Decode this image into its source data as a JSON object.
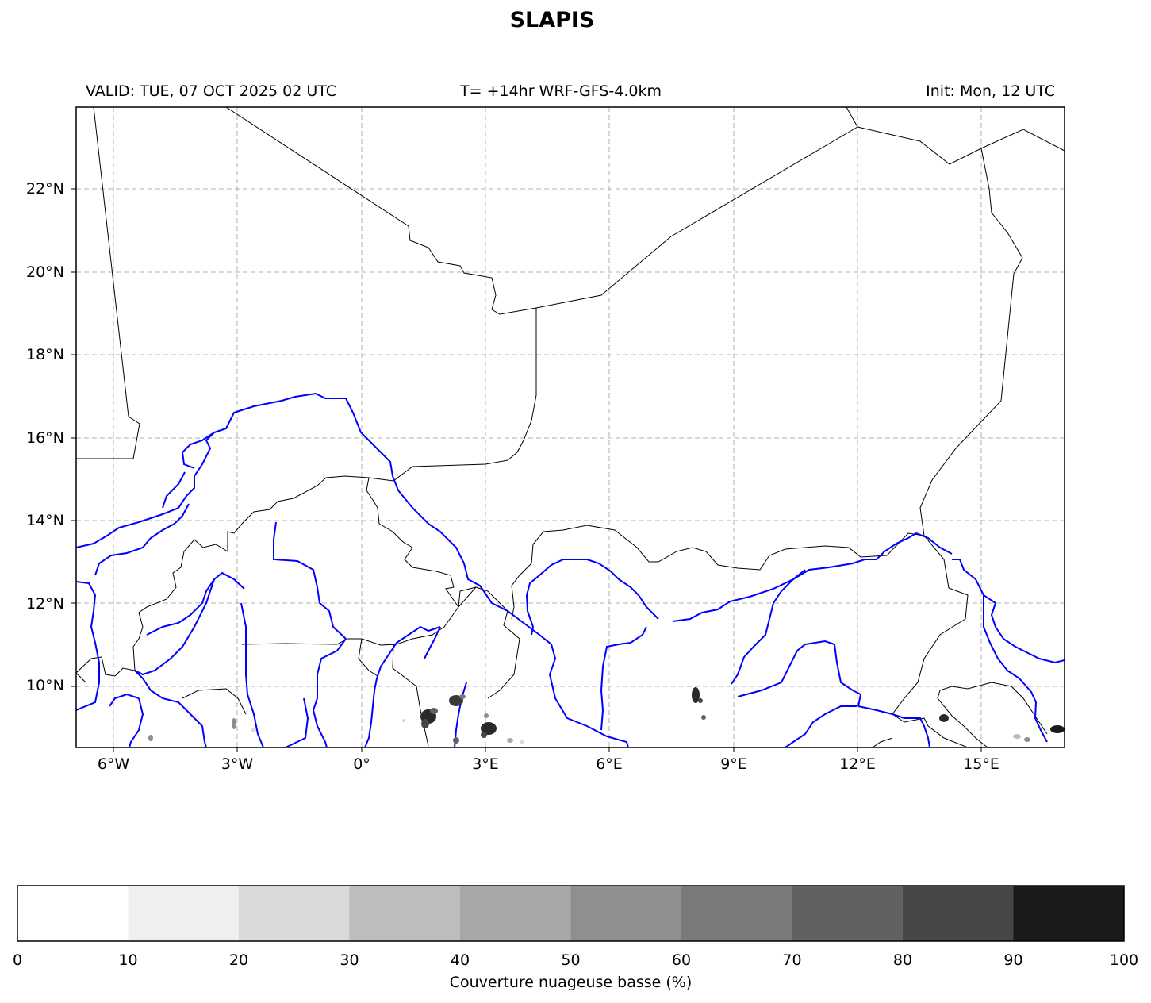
{
  "title": "SLAPIS",
  "header": {
    "valid": "VALID: TUE, 07 OCT 2025 02 UTC",
    "run": "T= +14hr WRF-GFS-4.0km",
    "init": "Init: Mon, 12 UTC"
  },
  "map": {
    "lon_range": [
      -6.9,
      16.9
    ],
    "lat_range": [
      8.5,
      24
    ],
    "lat_ticks": [
      "22°N",
      "20°N",
      "18°N",
      "16°N",
      "14°N",
      "12°N",
      "10°N"
    ],
    "lon_ticks": [
      "6°W",
      "3°W",
      "0°",
      "3°E",
      "6°E",
      "9°E",
      "12°E",
      "15°E"
    ],
    "grid": true,
    "colors": {
      "rivers": "#0000ff",
      "borders": "#000000",
      "grid": "#b0b0b0"
    }
  },
  "colorbar": {
    "label": "Couverture nuageuse basse (%)",
    "ticks": [
      "0",
      "10",
      "20",
      "30",
      "40",
      "50",
      "60",
      "70",
      "80",
      "90",
      "100"
    ],
    "colors": [
      "#ffffff",
      "#efefef",
      "#d9d9d9",
      "#bdbdbd",
      "#a8a8a8",
      "#8f8f8f",
      "#7a7a7a",
      "#616161",
      "#474747",
      "#1a1a1a"
    ]
  }
}
